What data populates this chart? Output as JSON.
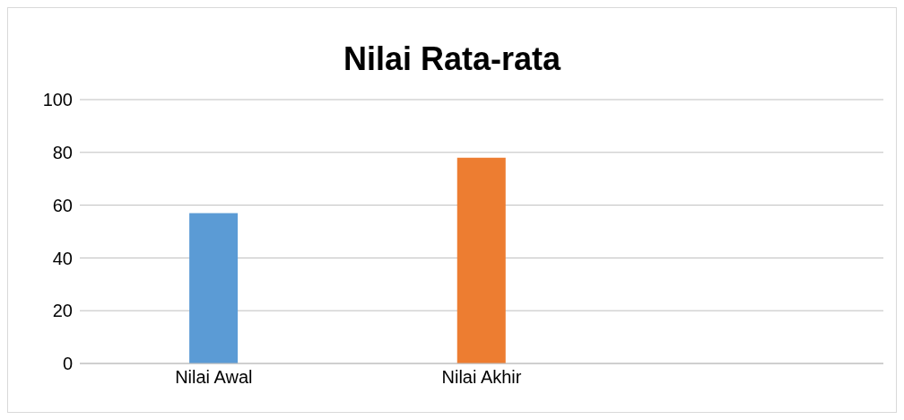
{
  "chart_data": {
    "type": "bar",
    "title": "Nilai Rata-rata",
    "categories": [
      "Nilai Awal",
      "Nilai Akhir",
      null
    ],
    "values": [
      57,
      78,
      null
    ],
    "colors": [
      "#5b9bd5",
      "#ed7d31",
      "#a5a5a5"
    ],
    "ylim": [
      0,
      100
    ],
    "yticks": [
      0,
      20,
      40,
      60,
      80,
      100
    ],
    "grid": "y"
  }
}
